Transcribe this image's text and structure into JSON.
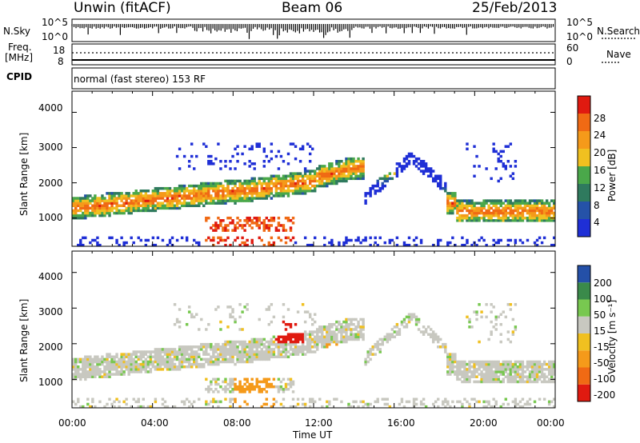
{
  "header": {
    "station": "Unwin (fitACF)",
    "beam": "Beam 06",
    "date": "25/Feb/2013"
  },
  "sky_panel": {
    "left_label": "N.Sky",
    "left_ticks": [
      "10^5",
      "10^0"
    ],
    "right_ticks": [
      "10^5",
      "10^0"
    ],
    "right_label": "N.Search"
  },
  "freq_panel": {
    "left_label_1": "Freq.",
    "left_label_2": "[MHz]",
    "left_ticks": [
      "18",
      "8"
    ],
    "right_ticks": [
      "60",
      "0"
    ],
    "right_label": "Nave"
  },
  "cpid": {
    "label": "CPID",
    "mode": "normal (fast stereo) 153 RF"
  },
  "colors": {
    "power": [
      "#1f2fd6",
      "#2552a8",
      "#2f7a5e",
      "#4aa84a",
      "#f0c020",
      "#f59a1a",
      "#f06a14",
      "#e01a10"
    ],
    "velocity": [
      "#e01a10",
      "#f06a14",
      "#f59a1a",
      "#f0c020",
      "#c8c8c0",
      "#78c850",
      "#3a8a4a",
      "#2450a8"
    ]
  },
  "chart_data": [
    {
      "type": "heatmap",
      "quantity": "Power",
      "ylabel": "Slant Range [km]",
      "yticks": [
        1000,
        2000,
        3000,
        4000
      ],
      "ylim": [
        200,
        4600
      ],
      "xlim": [
        0,
        24
      ],
      "colorbar": {
        "label": "Power [dB]",
        "tick_labels": [
          "4",
          "8",
          "12",
          "16",
          "20",
          "24",
          "28"
        ],
        "range": [
          0,
          32
        ]
      }
    },
    {
      "type": "heatmap",
      "quantity": "Velocity",
      "ylabel": "Slant Range [km]",
      "yticks": [
        1000,
        2000,
        3000,
        4000
      ],
      "ylim": [
        200,
        4600
      ],
      "xlim": [
        0,
        24
      ],
      "xlabel": "Time UT",
      "xtick_labels": [
        "00:00",
        "04:00",
        "08:00",
        "12:00",
        "16:00",
        "20:00",
        "00:00"
      ],
      "colorbar": {
        "label": "Velocity [m s⁻¹]",
        "tick_labels": [
          "200",
          "100",
          "50",
          "15",
          "-15",
          "-50",
          "-100",
          "-200"
        ]
      }
    }
  ]
}
